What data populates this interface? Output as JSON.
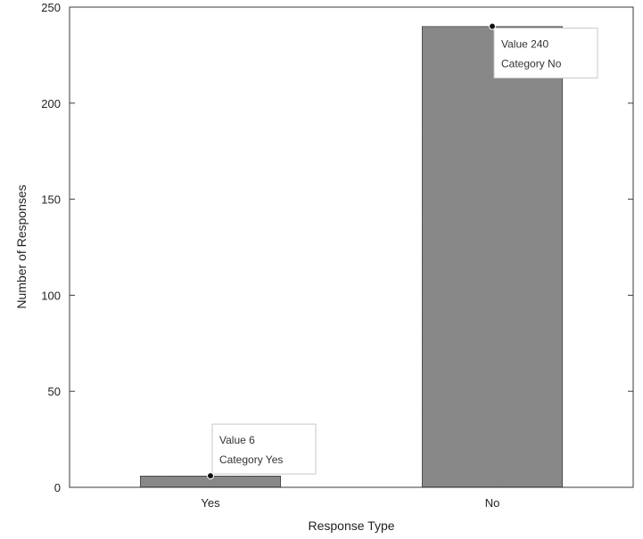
{
  "chart_data": {
    "type": "bar",
    "title": "",
    "categories": [
      "Yes",
      "No"
    ],
    "values": [
      6,
      240
    ],
    "xlabel": "Response Type",
    "ylabel": "Number of Responses",
    "ylim": [
      0,
      250
    ],
    "yticks": [
      0,
      50,
      100,
      150,
      200,
      250
    ],
    "grid": false,
    "bar_color": "#8c8c8c",
    "bar_edge_color": "#2a2a2a",
    "datatips": [
      {
        "value_line": "Value 6",
        "category_line": "Category Yes",
        "category": "Yes",
        "value": 6
      },
      {
        "value_line": "Value 240",
        "category_line": "Category No",
        "category": "No",
        "value": 240
      }
    ]
  }
}
